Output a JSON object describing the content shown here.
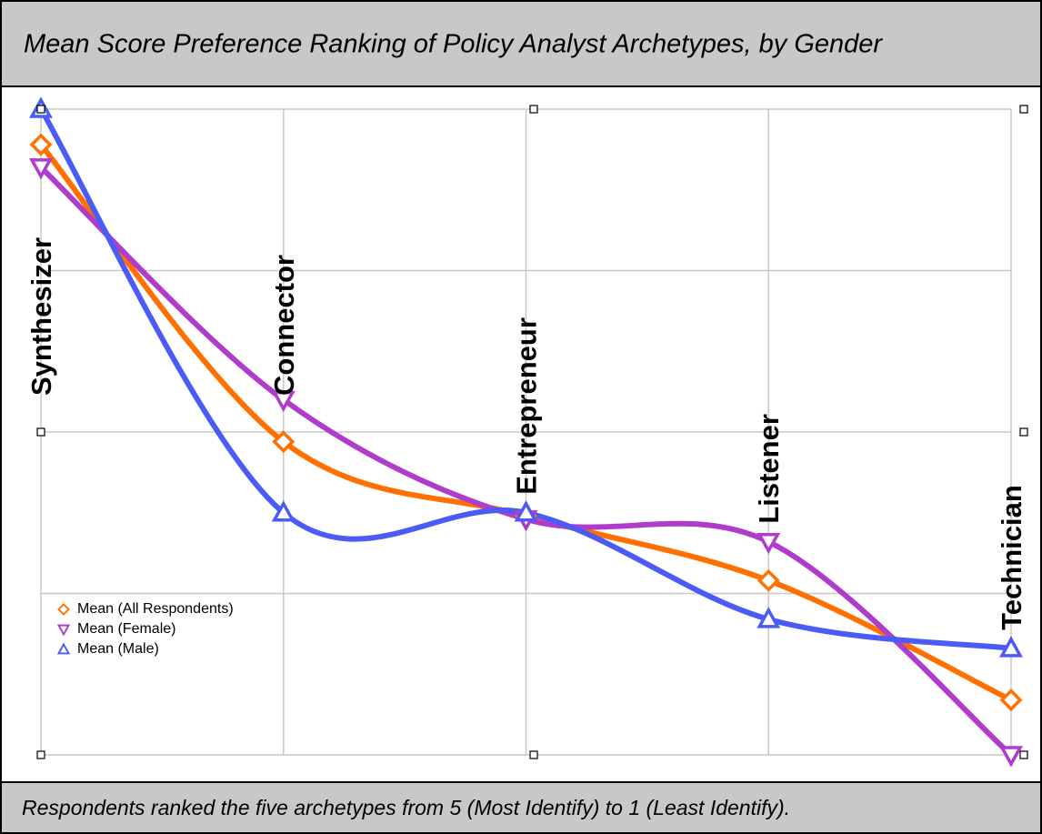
{
  "chart_data": {
    "type": "line",
    "title": "Mean Score Preference Ranking of Policy Analyst Archetypes, by Gender",
    "caption": "Respondents ranked the five archetypes from 5 (Most Identify) to 1 (Least Identify).",
    "categories": [
      "Synthesizer",
      "Connector",
      "Entrepreneur",
      "Listener",
      "Technician"
    ],
    "series": [
      {
        "name": "Mean (All Respondents)",
        "color": "#ff7000",
        "marker": "diamond",
        "values": [
          3.99,
          3.07,
          2.84,
          2.64,
          2.27
        ]
      },
      {
        "name": "Mean (Female)",
        "color": "#b03ccc",
        "marker": "triangle-down",
        "values": [
          3.92,
          3.2,
          2.83,
          2.76,
          2.1
        ]
      },
      {
        "name": "Mean (Male)",
        "color": "#4a5cf5",
        "marker": "triangle-up",
        "values": [
          4.1,
          2.85,
          2.85,
          2.52,
          2.43
        ]
      }
    ],
    "ylim": [
      2.1,
      4.1
    ],
    "yticks": [
      2.1,
      2.6,
      3.1,
      3.6,
      4.1
    ],
    "grid": true,
    "smooth": true,
    "legend": "lower left"
  }
}
